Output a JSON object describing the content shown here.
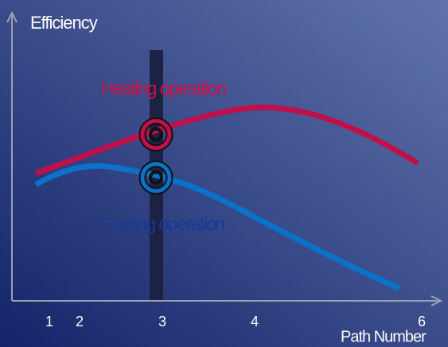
{
  "axes": {
    "y_label": "Efficiency",
    "x_label": "Path Number",
    "x_ticks": [
      "1",
      "2",
      "3",
      "4",
      "6"
    ]
  },
  "curves": {
    "heating": "Heating operation",
    "cooling": "Cooling operation"
  }
}
